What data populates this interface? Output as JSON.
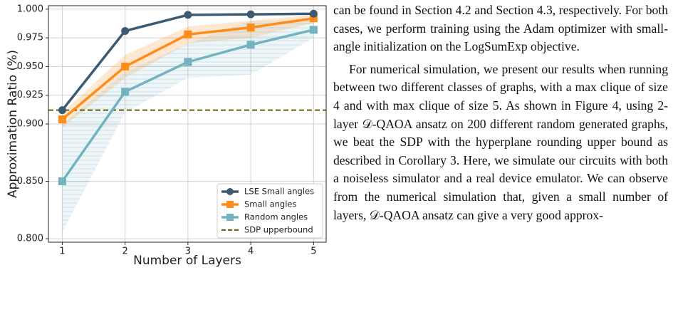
{
  "chart_data": {
    "type": "line",
    "ylabel": "Approximation Ratio (%)",
    "xlabel": "Number of Layers",
    "x": [
      1,
      2,
      3,
      4,
      5
    ],
    "xlim": [
      0.78,
      5.2
    ],
    "xticks": [
      1,
      2,
      3,
      4,
      5
    ],
    "ylim": [
      0.797,
      1.003
    ],
    "yticks": [
      {
        "value": 0.8,
        "label": "0.800"
      },
      {
        "value": 0.85,
        "label": "0.850"
      },
      {
        "value": 0.9,
        "label": "0.900"
      },
      {
        "value": 0.925,
        "label": "0.925"
      },
      {
        "value": 0.95,
        "label": "0.950"
      },
      {
        "value": 0.975,
        "label": "0.975"
      },
      {
        "value": 1.0,
        "label": "1.000"
      }
    ],
    "grid": true,
    "legend": "lower right",
    "series": [
      {
        "name": "LSE Small angles",
        "color": "#3d5a73",
        "marker": "circle",
        "values": [
          0.912,
          0.981,
          0.995,
          0.9955,
          0.996
        ]
      },
      {
        "name": "Small angles",
        "color": "#ff8c1a",
        "marker": "square",
        "values": [
          0.904,
          0.95,
          0.978,
          0.984,
          0.992
        ],
        "lower": [
          0.897,
          0.94,
          0.97,
          0.975,
          0.988
        ],
        "upper": [
          0.91,
          0.96,
          0.985,
          0.99,
          0.995
        ]
      },
      {
        "name": "Random angles",
        "color": "#72b3bf",
        "marker": "square",
        "values": [
          0.85,
          0.928,
          0.954,
          0.969,
          0.982
        ],
        "lower": [
          0.806,
          0.91,
          0.94,
          0.943,
          0.975
        ],
        "upper": [
          0.9,
          0.945,
          0.97,
          0.99,
          0.99
        ]
      }
    ],
    "hline": {
      "name": "SDP upperbound",
      "value": 0.912,
      "color": "#6b5e10"
    }
  },
  "text": {
    "paragraphs": [
      "can be found in Section 4.2 and Section 4.3, respectively. For both cases, we perform training using the Adam optimizer with small-angle initialization on the LogSumExp objective.",
      "For numerical simulation, we present our results when running between two different classes of graphs, with a max clique of size 4 and with max clique of size 5. As shown in Figure 4, using 2-layer 𝒟-QAOA ansatz on 200 different random generated graphs, we beat the SDP with the hyperplane rounding upper bound as described in Corollary 3. Here, we simulate our circuits with both a noiseless simulator and a real device emulator. We can observe from the numerical simulation that, given a small number of layers, 𝒟-QAOA ansatz can give a very good approx-"
    ]
  }
}
